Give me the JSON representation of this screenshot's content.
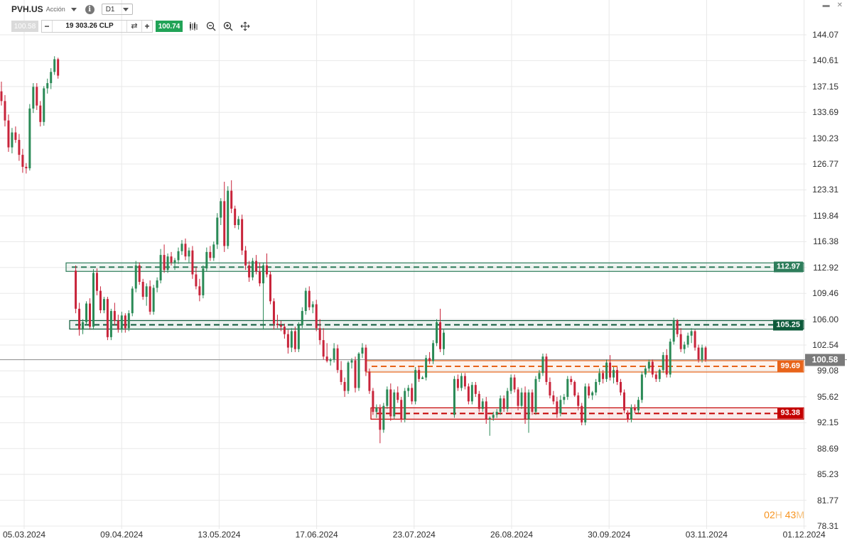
{
  "header": {
    "symbol": "PVH.US",
    "symbol_type": "Acción",
    "timeframe": "D1",
    "bid": "100.58",
    "ask": "100.74",
    "quantity": "19 303.26 CLP",
    "minus": "−",
    "plus": "+",
    "swap_icon": "swap-arrows-icon",
    "tools": [
      "candlestick-type-icon",
      "zoom-out-icon",
      "zoom-in-icon",
      "move-crosshair-icon"
    ],
    "window_controls": [
      "minimize-icon",
      "close-icon"
    ]
  },
  "price_levels": [
    {
      "label": "112.97",
      "value": 112.97,
      "color": "#2e7d5b"
    },
    {
      "label": "105.25",
      "value": 105.25,
      "color": "#0d5a3a"
    },
    {
      "label": "99.69",
      "value": 99.69,
      "color": "#e8641a"
    },
    {
      "label": "93.38",
      "value": 93.38,
      "color": "#c40000"
    }
  ],
  "current_price": {
    "label": "100.58",
    "value": 100.58,
    "color": "#7a7a7a"
  },
  "timer": {
    "h": "02",
    "h_unit": "H",
    "m": "43",
    "m_unit": "M"
  },
  "colors": {
    "up": "#2a8a56",
    "down": "#c8243a",
    "grid": "#e8e8e8"
  },
  "chart_data": {
    "type": "candlestick",
    "symbol": "PVH.US",
    "timeframe": "D1",
    "yticks": [
      "144.07",
      "140.61",
      "137.15",
      "133.69",
      "130.23",
      "126.77",
      "123.31",
      "119.84",
      "116.38",
      "112.92",
      "109.46",
      "106.00",
      "102.54",
      "99.08",
      "95.62",
      "92.15",
      "88.69",
      "85.23",
      "81.77",
      "78.31"
    ],
    "xticks": [
      "05.03.2024",
      "09.04.2024",
      "13.05.2024",
      "17.06.2024",
      "23.07.2024",
      "26.08.2024",
      "30.09.2024",
      "03.11.2024",
      "01.12.2024"
    ],
    "ylim": [
      78.31,
      146.0
    ],
    "grid": true,
    "candles": [
      [
        136.5,
        137.8,
        134.6,
        135.2
      ],
      [
        135.2,
        136.0,
        131.8,
        132.6
      ],
      [
        132.6,
        133.4,
        128.4,
        129.0
      ],
      [
        129.0,
        131.6,
        128.2,
        131.0
      ],
      [
        131.0,
        131.8,
        129.6,
        130.0
      ],
      [
        130.0,
        130.8,
        127.2,
        128.0
      ],
      [
        128.0,
        128.8,
        125.6,
        126.4
      ],
      [
        126.4,
        126.9,
        125.5,
        126.2
      ],
      [
        126.2,
        134.8,
        125.9,
        134.2
      ],
      [
        134.2,
        137.6,
        133.6,
        137.1
      ],
      [
        137.1,
        137.6,
        134.0,
        134.6
      ],
      [
        134.6,
        135.2,
        131.8,
        132.4
      ],
      [
        132.4,
        137.2,
        131.9,
        136.9
      ],
      [
        136.9,
        138.2,
        136.2,
        137.6
      ],
      [
        137.6,
        139.6,
        136.8,
        139.1
      ],
      [
        139.1,
        141.2,
        138.7,
        140.8
      ],
      [
        140.8,
        141.0,
        138.2,
        138.6
      ],
      [
        null
      ],
      [
        null
      ],
      [
        null
      ],
      [
        null
      ],
      [
        112.5,
        113.2,
        106.8,
        107.4
      ],
      [
        107.4,
        108.2,
        103.8,
        104.6
      ],
      [
        104.6,
        106.0,
        104.0,
        105.6
      ],
      [
        105.6,
        108.4,
        105.2,
        108.1
      ],
      [
        108.1,
        108.8,
        104.6,
        105.0
      ],
      [
        105.0,
        112.7,
        104.6,
        112.2
      ],
      [
        112.2,
        112.8,
        109.2,
        109.8
      ],
      [
        109.8,
        110.4,
        106.8,
        107.2
      ],
      [
        107.2,
        109.0,
        106.8,
        108.7
      ],
      [
        108.7,
        109.0,
        103.2,
        103.6
      ],
      [
        103.6,
        107.4,
        103.2,
        107.1
      ],
      [
        107.1,
        108.2,
        105.2,
        105.8
      ],
      [
        105.8,
        106.6,
        104.2,
        104.6
      ],
      [
        104.6,
        107.0,
        104.2,
        106.5
      ],
      [
        106.5,
        106.8,
        104.2,
        104.8
      ],
      [
        104.8,
        107.2,
        104.4,
        106.8
      ],
      [
        106.8,
        110.4,
        106.4,
        110.1
      ],
      [
        110.1,
        113.8,
        109.6,
        113.2
      ],
      [
        113.2,
        113.6,
        110.6,
        111.0
      ],
      [
        111.0,
        111.4,
        108.6,
        109.0
      ],
      [
        109.0,
        110.8,
        107.8,
        110.4
      ],
      [
        110.4,
        111.2,
        106.6,
        107.0
      ],
      [
        107.0,
        110.6,
        106.6,
        110.2
      ],
      [
        110.2,
        111.6,
        109.6,
        111.2
      ],
      [
        111.2,
        115.4,
        110.8,
        114.6
      ],
      [
        114.6,
        116.0,
        112.2,
        112.6
      ],
      [
        112.6,
        114.8,
        112.2,
        114.4
      ],
      [
        114.4,
        115.0,
        113.2,
        113.6
      ],
      [
        113.6,
        114.2,
        112.6,
        113.9
      ],
      [
        113.9,
        115.6,
        113.4,
        115.1
      ],
      [
        115.1,
        116.6,
        114.6,
        116.1
      ],
      [
        116.1,
        116.8,
        113.9,
        114.4
      ],
      [
        114.4,
        115.6,
        113.6,
        115.2
      ],
      [
        115.2,
        115.8,
        111.4,
        112.0
      ],
      [
        112.0,
        113.0,
        110.0,
        110.4
      ],
      [
        110.4,
        111.4,
        108.4,
        109.2
      ],
      [
        109.2,
        113.2,
        108.8,
        112.8
      ],
      [
        112.8,
        115.6,
        112.4,
        115.0
      ],
      [
        115.0,
        115.8,
        113.8,
        114.2
      ],
      [
        114.2,
        116.4,
        113.8,
        116.0
      ],
      [
        116.0,
        120.2,
        115.4,
        119.6
      ],
      [
        119.6,
        122.2,
        118.6,
        121.8
      ],
      [
        121.8,
        124.4,
        115.0,
        115.8
      ],
      [
        115.8,
        123.8,
        115.4,
        123.2
      ],
      [
        123.2,
        124.6,
        120.2,
        120.8
      ],
      [
        120.8,
        121.2,
        118.2,
        118.6
      ],
      [
        118.6,
        119.8,
        118.0,
        119.4
      ],
      [
        119.4,
        120.0,
        114.6,
        115.2
      ],
      [
        115.2,
        115.8,
        112.6,
        113.2
      ],
      [
        113.2,
        113.8,
        111.0,
        111.6
      ],
      [
        111.6,
        114.2,
        111.2,
        113.8
      ],
      [
        113.8,
        114.6,
        112.0,
        112.4
      ],
      [
        112.4,
        113.6,
        110.4,
        110.8
      ],
      [
        110.8,
        113.6,
        104.6,
        113.2
      ],
      [
        113.2,
        114.8,
        111.6,
        112.0
      ],
      [
        112.0,
        112.4,
        108.0,
        108.4
      ],
      [
        108.4,
        108.8,
        104.6,
        105.4
      ],
      [
        105.4,
        106.6,
        104.8,
        105.2
      ],
      [
        105.2,
        105.8,
        104.4,
        105.0
      ],
      [
        105.0,
        105.4,
        103.4,
        104.0
      ],
      [
        104.0,
        104.6,
        101.4,
        102.2
      ],
      [
        102.2,
        104.8,
        101.6,
        104.4
      ],
      [
        104.4,
        105.0,
        101.6,
        102.0
      ],
      [
        102.0,
        105.6,
        101.6,
        105.2
      ],
      [
        105.2,
        107.6,
        104.8,
        107.1
      ],
      [
        107.1,
        110.2,
        106.6,
        109.8
      ],
      [
        109.8,
        110.4,
        107.2,
        107.6
      ],
      [
        107.6,
        108.4,
        106.8,
        108.0
      ],
      [
        108.0,
        108.6,
        104.4,
        104.8
      ],
      [
        104.8,
        106.0,
        102.6,
        103.2
      ],
      [
        103.2,
        104.8,
        100.6,
        101.0
      ],
      [
        101.0,
        102.8,
        100.2,
        100.4
      ],
      [
        100.4,
        100.8,
        99.8,
        100.6
      ],
      [
        100.6,
        102.8,
        100.2,
        102.1
      ],
      [
        102.1,
        102.6,
        98.8,
        99.2
      ],
      [
        99.2,
        100.4,
        97.2,
        97.6
      ],
      [
        97.6,
        98.2,
        95.6,
        96.4
      ],
      [
        96.4,
        100.4,
        96.0,
        100.2
      ],
      [
        100.2,
        100.8,
        99.4,
        100.5
      ],
      [
        100.5,
        101.0,
        96.2,
        96.8
      ],
      [
        96.8,
        101.6,
        96.4,
        101.4
      ],
      [
        101.4,
        102.8,
        100.8,
        102.2
      ],
      [
        102.2,
        102.6,
        98.4,
        99.0
      ],
      [
        99.0,
        99.4,
        96.0,
        96.4
      ],
      [
        96.4,
        96.8,
        93.2,
        93.6
      ],
      [
        93.6,
        94.6,
        92.8,
        94.2
      ],
      [
        94.2,
        94.6,
        89.4,
        91.2
      ],
      [
        91.2,
        94.8,
        90.8,
        94.4
      ],
      [
        94.4,
        97.0,
        94.0,
        96.6
      ],
      [
        96.6,
        97.4,
        92.4,
        93.0
      ],
      [
        93.0,
        96.6,
        92.6,
        96.2
      ],
      [
        96.2,
        97.0,
        94.8,
        95.2
      ],
      [
        95.2,
        95.6,
        92.2,
        92.6
      ],
      [
        92.6,
        96.8,
        92.2,
        96.4
      ],
      [
        96.4,
        97.2,
        95.6,
        96.8
      ],
      [
        96.8,
        97.4,
        94.6,
        95.0
      ],
      [
        95.0,
        99.6,
        94.6,
        99.2
      ],
      [
        99.2,
        99.6,
        97.6,
        98.0
      ],
      [
        98.0,
        98.4,
        98.0,
        98.2
      ],
      [
        98.2,
        101.2,
        97.8,
        100.8
      ],
      [
        100.8,
        101.6,
        100.0,
        100.4
      ],
      [
        100.4,
        103.2,
        100.0,
        102.8
      ],
      [
        102.8,
        106.0,
        102.4,
        105.6
      ],
      [
        105.6,
        107.4,
        101.6,
        102.0
      ],
      [
        102.0,
        104.6,
        101.2,
        104.2
      ],
      [
        null
      ],
      [
        null
      ],
      [
        93.2,
        98.4,
        92.8,
        98.0
      ],
      [
        98.0,
        98.6,
        96.4,
        96.8
      ],
      [
        96.8,
        98.8,
        96.4,
        98.4
      ],
      [
        98.4,
        98.8,
        96.6,
        97.0
      ],
      [
        97.0,
        97.4,
        94.6,
        95.0
      ],
      [
        95.0,
        97.6,
        94.6,
        97.2
      ],
      [
        97.2,
        97.6,
        95.6,
        96.0
      ],
      [
        96.0,
        96.4,
        93.6,
        94.0
      ],
      [
        94.0,
        95.4,
        93.6,
        95.0
      ],
      [
        95.0,
        95.6,
        92.0,
        92.6
      ],
      [
        92.6,
        93.0,
        90.4,
        92.8
      ],
      [
        92.8,
        93.6,
        92.4,
        93.2
      ],
      [
        93.2,
        94.0,
        92.8,
        93.6
      ],
      [
        93.6,
        95.8,
        93.2,
        95.4
      ],
      [
        95.4,
        95.8,
        93.6,
        94.0
      ],
      [
        94.0,
        96.8,
        93.6,
        96.4
      ],
      [
        96.4,
        98.6,
        96.0,
        98.2
      ],
      [
        98.2,
        98.6,
        96.2,
        96.6
      ],
      [
        96.6,
        96.9,
        93.8,
        94.4
      ],
      [
        94.4,
        96.8,
        94.0,
        96.2
      ],
      [
        96.2,
        97.0,
        92.0,
        92.6
      ],
      [
        92.6,
        96.6,
        90.8,
        96.2
      ],
      [
        96.2,
        96.6,
        93.2,
        93.6
      ],
      [
        93.6,
        98.4,
        93.2,
        98.0
      ],
      [
        98.0,
        99.2,
        97.6,
        98.8
      ],
      [
        98.8,
        101.4,
        98.4,
        101.0
      ],
      [
        101.0,
        101.4,
        97.2,
        97.6
      ],
      [
        97.6,
        98.2,
        95.4,
        95.8
      ],
      [
        95.8,
        96.4,
        94.6,
        95.0
      ],
      [
        95.0,
        95.6,
        92.8,
        93.4
      ],
      [
        93.4,
        95.8,
        93.0,
        95.2
      ],
      [
        95.2,
        96.0,
        94.6,
        95.6
      ],
      [
        95.6,
        98.4,
        95.2,
        98.0
      ],
      [
        98.0,
        98.4,
        97.2,
        97.6
      ],
      [
        97.6,
        97.8,
        95.6,
        95.8
      ],
      [
        95.8,
        96.2,
        93.8,
        94.4
      ],
      [
        94.4,
        94.8,
        91.8,
        92.2
      ],
      [
        92.2,
        97.4,
        91.8,
        97.0
      ],
      [
        97.0,
        97.4,
        95.4,
        95.8
      ],
      [
        95.8,
        96.4,
        95.2,
        96.2
      ],
      [
        96.2,
        98.0,
        95.8,
        97.6
      ],
      [
        97.6,
        99.4,
        97.2,
        98.8
      ],
      [
        98.8,
        99.2,
        97.4,
        98.0
      ],
      [
        98.0,
        100.6,
        97.6,
        100.2
      ],
      [
        100.2,
        101.2,
        97.8,
        98.2
      ],
      [
        98.2,
        99.6,
        97.4,
        99.2
      ],
      [
        99.2,
        99.6,
        97.2,
        97.6
      ],
      [
        97.6,
        98.0,
        95.8,
        96.2
      ],
      [
        96.2,
        96.6,
        93.4,
        93.8
      ],
      [
        93.4,
        93.8,
        92.2,
        92.6
      ],
      [
        92.6,
        94.6,
        92.2,
        94.2
      ],
      [
        94.2,
        94.6,
        93.4,
        93.8
      ],
      [
        93.8,
        95.6,
        93.4,
        95.2
      ],
      [
        95.2,
        99.0,
        94.8,
        98.6
      ],
      [
        98.6,
        99.8,
        98.2,
        99.4
      ],
      [
        99.4,
        100.6,
        99.0,
        100.3
      ],
      [
        100.3,
        100.6,
        98.2,
        98.6
      ],
      [
        98.6,
        99.0,
        97.6,
        98.0
      ],
      [
        98.0,
        99.4,
        97.6,
        99.2
      ],
      [
        99.2,
        101.6,
        98.8,
        101.2
      ],
      [
        101.2,
        102.0,
        98.2,
        98.6
      ],
      [
        98.6,
        103.4,
        98.2,
        103.0
      ],
      [
        103.0,
        106.2,
        102.6,
        105.8
      ],
      [
        105.8,
        106.0,
        103.6,
        104.0
      ],
      [
        104.0,
        104.8,
        101.6,
        102.0
      ],
      [
        102.0,
        103.0,
        101.4,
        102.6
      ],
      [
        102.6,
        104.2,
        102.2,
        103.8
      ],
      [
        103.8,
        104.8,
        102.8,
        104.4
      ],
      [
        104.4,
        104.6,
        101.8,
        102.2
      ],
      [
        102.2,
        102.6,
        100.2,
        100.6
      ],
      [
        100.6,
        102.6,
        100.2,
        102.2
      ],
      [
        102.2,
        102.4,
        100.3,
        100.6
      ]
    ]
  }
}
